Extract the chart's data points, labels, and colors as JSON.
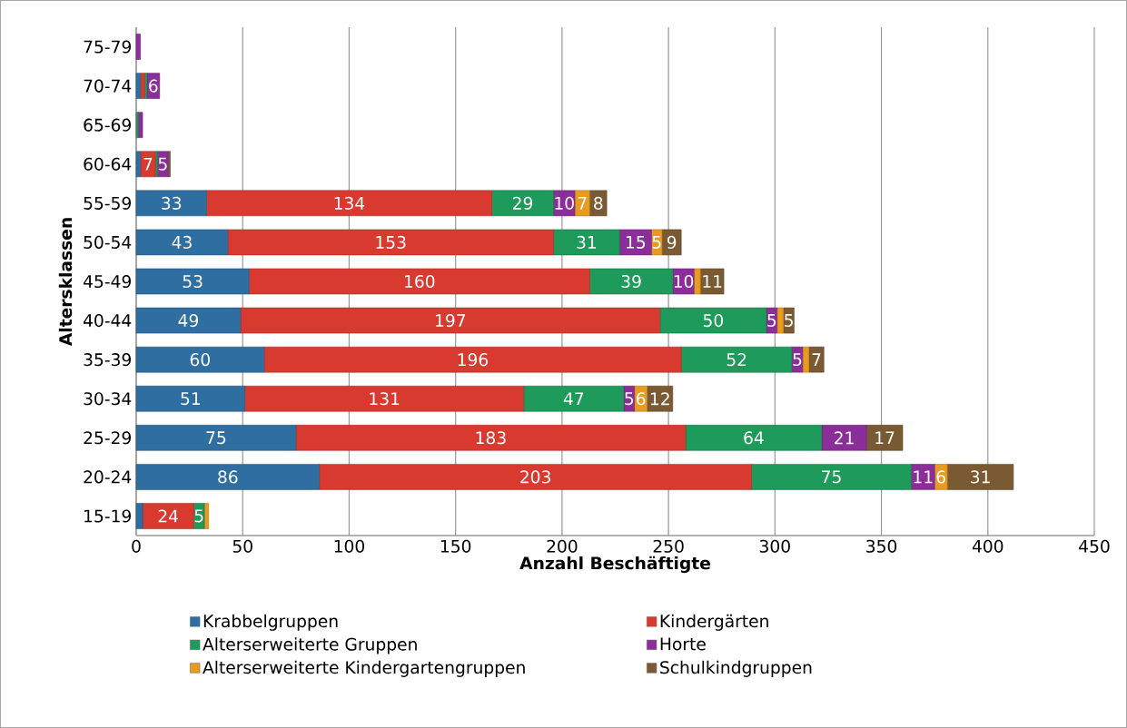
{
  "chart_data": {
    "type": "bar",
    "orientation": "horizontal",
    "stacked": true,
    "xlabel": "Anzahl Beschäftigte",
    "ylabel": "Altersklassen",
    "categories": [
      "75-79",
      "70-74",
      "65-69",
      "60-64",
      "55-59",
      "50-54",
      "45-49",
      "40-44",
      "35-39",
      "30-34",
      "25-29",
      "20-24",
      "15-19"
    ],
    "xlim": [
      0,
      450
    ],
    "xticks": [
      0,
      50,
      100,
      150,
      200,
      250,
      300,
      350,
      400,
      450
    ],
    "grid": "x",
    "legend": "bottom",
    "series": [
      {
        "name": "Krabbelgruppen",
        "color": "#2e6ea0",
        "values": [
          0,
          2,
          0,
          2,
          33,
          43,
          53,
          49,
          60,
          51,
          75,
          86,
          3
        ],
        "value_labels": [
          null,
          null,
          null,
          null,
          "33",
          "43",
          "53",
          "49",
          "60",
          "51",
          "75",
          "86",
          null
        ]
      },
      {
        "name": "Kindergärten",
        "color": "#d93a30",
        "values": [
          0,
          2,
          0,
          7,
          134,
          153,
          160,
          197,
          196,
          131,
          183,
          203,
          24
        ],
        "value_labels": [
          null,
          null,
          null,
          "7",
          "134",
          "153",
          "160",
          "197",
          "196",
          "131",
          "183",
          "203",
          "24"
        ]
      },
      {
        "name": "Alterserweiterte Gruppen",
        "color": "#1e9a5a",
        "values": [
          0,
          1,
          1,
          1,
          29,
          31,
          39,
          50,
          52,
          47,
          64,
          75,
          5
        ],
        "value_labels": [
          null,
          null,
          null,
          null,
          "29",
          "31",
          "39",
          "50",
          "52",
          "47",
          "64",
          "75",
          "5"
        ]
      },
      {
        "name": "Horte",
        "color": "#8c2e99",
        "values": [
          2,
          6,
          2,
          5,
          10,
          15,
          10,
          5,
          5,
          5,
          21,
          11,
          0
        ],
        "value_labels": [
          null,
          "6",
          null,
          "5",
          "10",
          "15",
          "10",
          "5",
          "5",
          "5",
          "21",
          "11",
          null
        ]
      },
      {
        "name": "Alterserweiterte Kindergartengruppen",
        "color": "#e89b1e",
        "values": [
          0,
          0,
          0,
          0,
          7,
          5,
          3,
          3,
          3,
          6,
          0,
          6,
          2
        ],
        "value_labels": [
          null,
          null,
          null,
          null,
          "7",
          "5",
          null,
          null,
          null,
          "6",
          null,
          "6",
          null
        ]
      },
      {
        "name": "Schulkindgruppen",
        "color": "#7a5a33",
        "values": [
          0,
          0,
          0,
          1,
          8,
          9,
          11,
          5,
          7,
          12,
          17,
          31,
          0
        ],
        "value_labels": [
          null,
          null,
          null,
          null,
          "8",
          "9",
          "11",
          "5",
          "7",
          "12",
          "17",
          "31",
          null
        ]
      }
    ]
  }
}
